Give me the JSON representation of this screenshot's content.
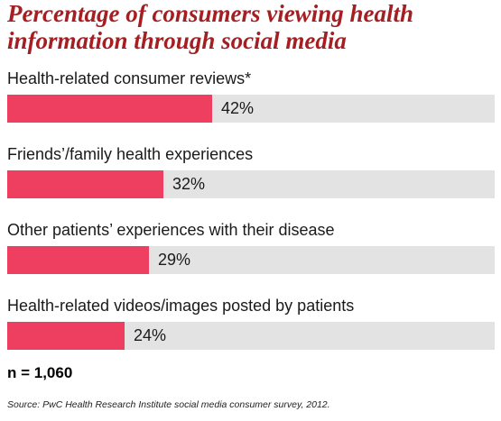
{
  "chart_data": {
    "type": "bar",
    "orientation": "horizontal",
    "title": "Percentage of consumers viewing health information through social media",
    "categories": [
      "Health-related consumer reviews*",
      "Friends’/family health experiences",
      "Other patients’ experiences with their disease",
      "Health-related videos/images posted by patients"
    ],
    "values": [
      42,
      32,
      29,
      24
    ],
    "value_labels": [
      "42%",
      "32%",
      "29%",
      "24%"
    ],
    "xlim": [
      0,
      100
    ],
    "colors": {
      "bar": "#ee3f60",
      "track": "#e3e3e3",
      "title": "#a51e22"
    }
  },
  "footnotes": {
    "sample": "n = 1,060",
    "source": "Source: PwC Health Research Institute social media consumer survey, 2012."
  }
}
